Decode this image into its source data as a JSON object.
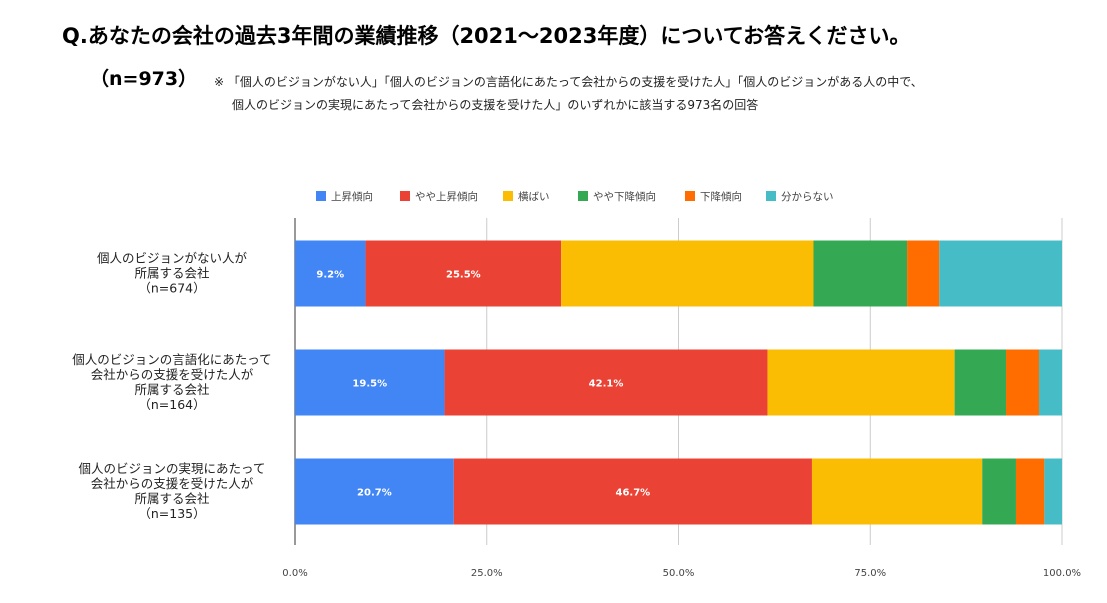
{
  "header": {
    "question": "Q.あなたの会社の過去3年間の業績推移（2021～2023年度）についてお答えください。",
    "sample": "（n=973）",
    "note_line1": "※ 「個人のビジョンがない人」「個人のビジョンの言語化にあたって会社からの支援を受けた人」「個人のビジョンがある人の中で、",
    "note_line2": "個人のビジョンの実現にあたって会社からの支援を受けた人」のいずれかに該当する973名の回答"
  },
  "colors": {
    "上昇傾向": "#4285f4",
    "やや上昇傾向": "#ea4335",
    "横ばい": "#fbbc04",
    "やや下降傾向": "#34a853",
    "下降傾向": "#ff6d01",
    "分からない": "#46bdc6"
  },
  "chart_data": {
    "type": "bar",
    "orientation": "horizontal",
    "stacked": true,
    "legend_position": "top",
    "grid": true,
    "xlim": [
      0,
      100
    ],
    "x_ticks": [
      "0.0%",
      "25.0%",
      "50.0%",
      "75.0%",
      "100.0%"
    ],
    "categories": [
      [
        "個人のビジョンがない人が",
        "所属する会社",
        "（n=674）"
      ],
      [
        "個人のビジョンの言語化にあたって",
        "会社からの支援を受けた人が",
        "所属する会社",
        "（n=164）"
      ],
      [
        "個人のビジョンの実現にあたって",
        "会社からの支援を受けた人が",
        "所属する会社",
        "（n=135）"
      ]
    ],
    "series": [
      {
        "name": "上昇傾向",
        "values": [
          9.2,
          19.5,
          20.7
        ],
        "labels": [
          "9.2%",
          "19.5%",
          "20.7%"
        ]
      },
      {
        "name": "やや上昇傾向",
        "values": [
          25.5,
          42.1,
          46.7
        ],
        "labels": [
          "25.5%",
          "42.1%",
          "46.7%"
        ]
      },
      {
        "name": "横ばい",
        "values": [
          32.9,
          24.4,
          22.2
        ],
        "labels": [
          "",
          "",
          ""
        ]
      },
      {
        "name": "やや下降傾向",
        "values": [
          12.2,
          6.7,
          4.4
        ],
        "labels": [
          "",
          "",
          ""
        ]
      },
      {
        "name": "下降傾向",
        "values": [
          4.2,
          4.3,
          3.7
        ],
        "labels": [
          "",
          "",
          ""
        ]
      },
      {
        "name": "分からない",
        "values": [
          16.0,
          3.0,
          2.3
        ],
        "labels": [
          "",
          "",
          ""
        ]
      }
    ]
  }
}
